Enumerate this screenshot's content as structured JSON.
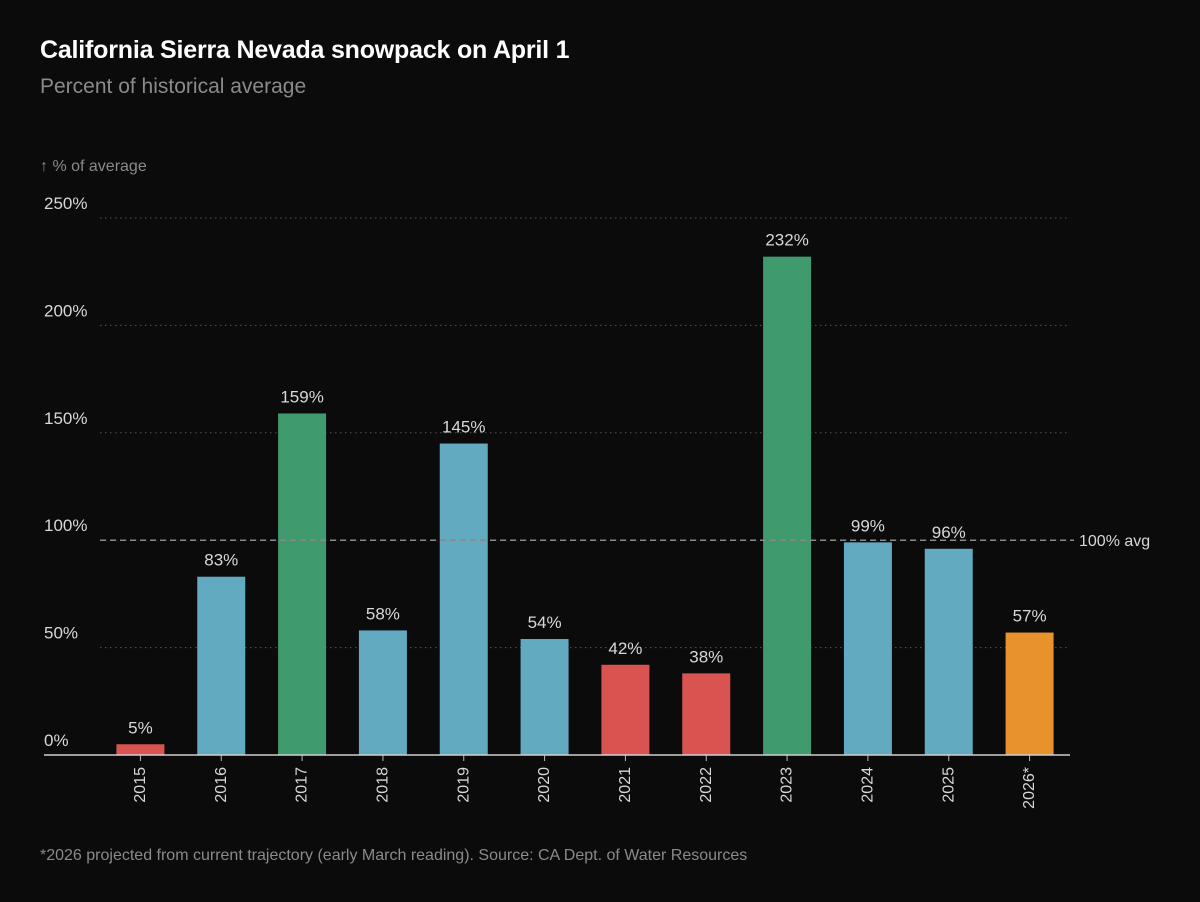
{
  "header": {
    "title": "California Sierra Nevada snowpack on April 1",
    "subtitle": "Percent of historical average"
  },
  "footnote": "*2026 projected from current trajectory (early March reading). Source: CA Dept. of Water Resources",
  "colors": {
    "background": "#0b0b0b",
    "low": "#d95451",
    "normal": "#62aac0",
    "high": "#3f9b6e",
    "projected": "#e8922e",
    "grid": "#555555",
    "reference": "#8a8a8a",
    "text": "#d8d8d8",
    "muted": "#8a8a8a"
  },
  "chart_data": {
    "type": "bar",
    "title": "California Sierra Nevada snowpack on April 1",
    "subtitle": "Percent of historical average",
    "ylabel": "↑ % of average",
    "xlabel": "",
    "ylim": [
      0,
      250
    ],
    "yticks": [
      0,
      50,
      100,
      150,
      200,
      250
    ],
    "ytick_labels": [
      "0%",
      "50%",
      "100%",
      "150%",
      "200%",
      "250%"
    ],
    "grid": "horizontal dotted",
    "categories": [
      "2015",
      "2016",
      "2017",
      "2018",
      "2019",
      "2020",
      "2021",
      "2022",
      "2023",
      "2024",
      "2025",
      "2026*"
    ],
    "values": [
      5,
      83,
      159,
      58,
      145,
      54,
      42,
      38,
      232,
      99,
      96,
      57
    ],
    "data_labels": [
      "5%",
      "83%",
      "159%",
      "58%",
      "145%",
      "54%",
      "42%",
      "38%",
      "232%",
      "99%",
      "96%",
      "57%"
    ],
    "bar_classes": [
      "low",
      "normal",
      "high",
      "normal",
      "normal",
      "normal",
      "low",
      "low",
      "high",
      "normal",
      "normal",
      "projected"
    ],
    "reference_line": {
      "value": 100,
      "label": "100% avg"
    }
  }
}
